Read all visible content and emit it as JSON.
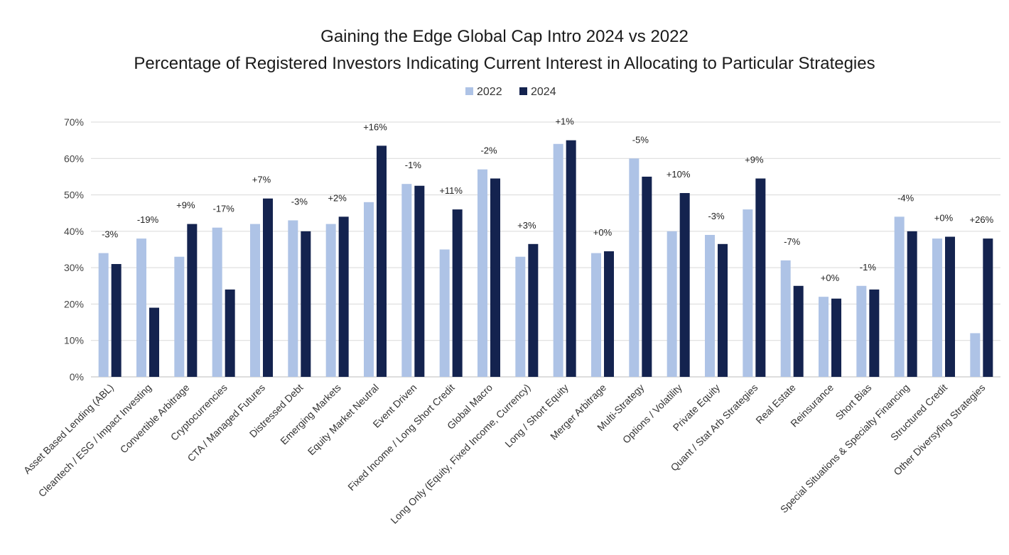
{
  "chart_data": {
    "type": "bar",
    "title": "Gaining the Edge Global Cap Intro 2024 vs 2022",
    "subtitle": "Percentage of Registered Investors Indicating Current Interest in Allocating to Particular Strategies",
    "legend_position": "top-center",
    "ylim": [
      0,
      70
    ],
    "yticks": [
      0,
      10,
      20,
      30,
      40,
      50,
      60,
      70
    ],
    "ytick_labels": [
      "0%",
      "10%",
      "20%",
      "30%",
      "40%",
      "50%",
      "60%",
      "70%"
    ],
    "grid": true,
    "categories": [
      "Asset Based Lending (ABL)",
      "Cleantech / ESG / Impact Investing",
      "Convertible Arbitrage",
      "Cryptocurrencies",
      "CTA / Managed Futures",
      "Distressed Debt",
      "Emerging Markets",
      "Equity Market Neutral",
      "Event Driven",
      "Fixed Income / Long Short Credit",
      "Global Macro",
      "Long Only (Equity, Fixed Income, Currency)",
      "Long / Short Equity",
      "Merger Arbitrage",
      "Multi-Strategy",
      "Options / Volatility",
      "Private Equity",
      "Quant / Stat Arb Strategies",
      "Real Estate",
      "Reinsurance",
      "Short Bias",
      "Special Situations & Specialty Financing",
      "Structured Credit",
      "Other Diversyfing Strategies"
    ],
    "series": [
      {
        "name": "2022",
        "color": "#aec3e6",
        "values": [
          34,
          38,
          33,
          41,
          42,
          43,
          42,
          48,
          53,
          35,
          57,
          33,
          64,
          34,
          60,
          40,
          39,
          46,
          32,
          22,
          25,
          44,
          38,
          12
        ]
      },
      {
        "name": "2024",
        "color": "#14234f",
        "values": [
          31,
          19,
          42,
          24,
          49,
          40,
          44,
          63.5,
          52.5,
          46,
          54.5,
          36.5,
          65,
          34.5,
          55,
          50.5,
          36.5,
          54.5,
          25,
          21.5,
          24,
          40,
          38.5,
          38
        ]
      }
    ],
    "delta_labels": [
      "-3%",
      "-19%",
      "+9%",
      "-17%",
      "+7%",
      "-3%",
      "+2%",
      "+16%",
      "-1%",
      "+11%",
      "-2%",
      "+3%",
      "+1%",
      "+0%",
      "-5%",
      "+10%",
      "-3%",
      "+9%",
      "-7%",
      "+0%",
      "-1%",
      "-4%",
      "+0%",
      "+26%"
    ]
  }
}
